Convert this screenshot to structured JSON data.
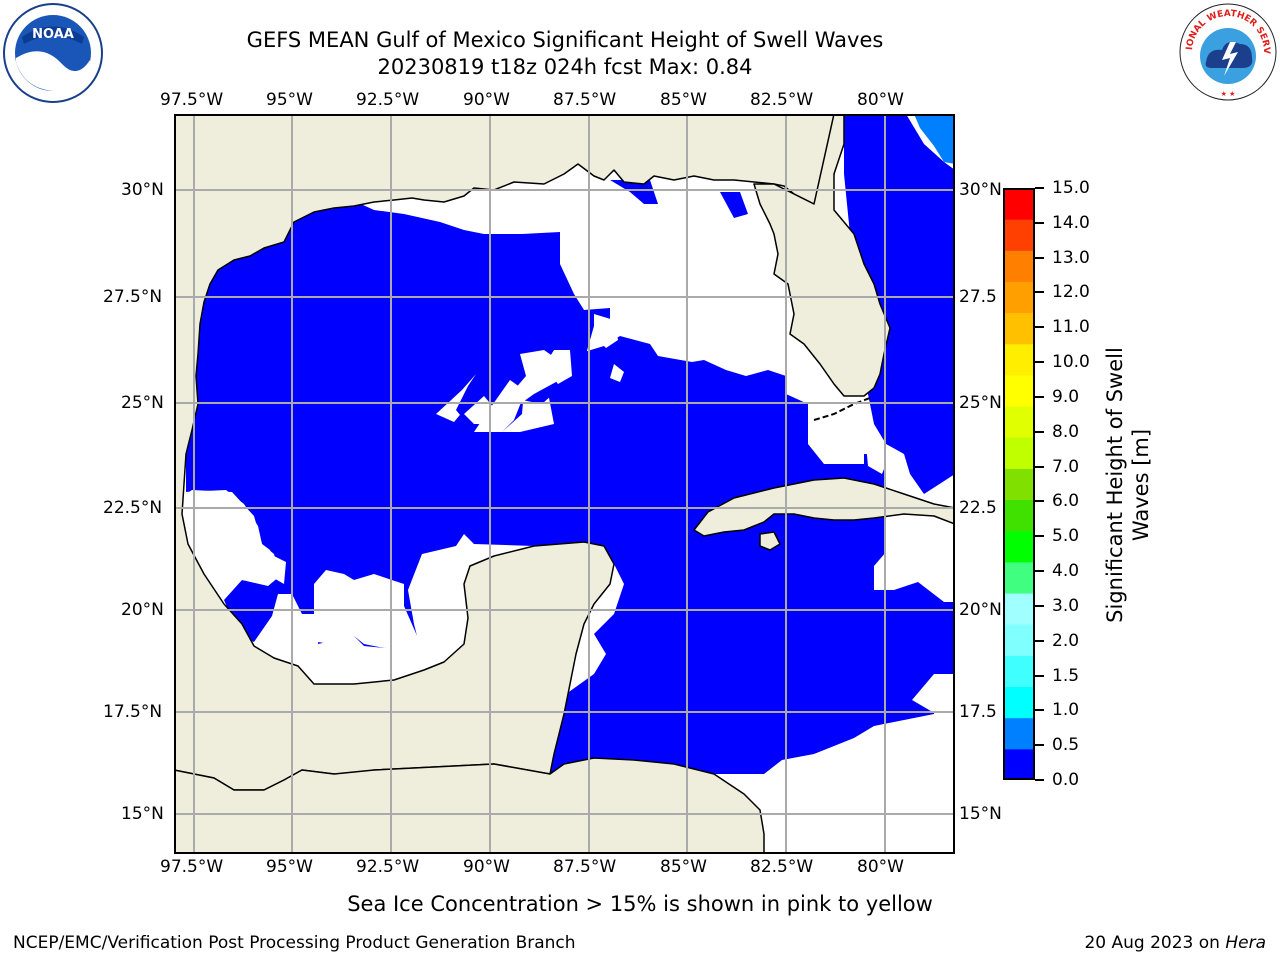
{
  "title_line1": "GEFS MEAN Gulf of Mexico Significant Height of Swell Waves",
  "title_line2": "20230819 t18z 024h fcst   Max: 0.84",
  "note": "Sea Ice Concentration > 15% is shown in pink to yellow",
  "footer_left": "NCEP/EMC/Verification Post Processing Product Generation Branch",
  "footer_right_date": "20 Aug 2023 on ",
  "footer_right_host": "Hera",
  "logos": {
    "left": "NOAA",
    "right": "NATIONAL WEATHER SERVICE"
  },
  "map": {
    "lon_labels": [
      "97.5°W",
      "95°W",
      "92.5°W",
      "90°W",
      "87.5°W",
      "85°W",
      "82.5°W",
      "80°W"
    ],
    "lat_labels_left": [
      "30°N",
      "27.5°N",
      "25°N",
      "22.5°N",
      "20°N",
      "17.5°N",
      "15°N"
    ],
    "lat_labels_right": [
      "30°N",
      "27.5",
      "25°N",
      "22.5",
      "20°N",
      "17.5",
      "15°N"
    ],
    "land_color": "#efeedd",
    "low_swell_color": "#0000ff",
    "mid_swell_color": "#0080ff"
  },
  "colorbar": {
    "label": "Significant Height of Swell\nWaves [m]",
    "label_line1": "Significant Height of Swell",
    "label_line2": "Waves [m]",
    "ticks": [
      "15.0",
      "14.0",
      "13.0",
      "12.0",
      "11.0",
      "10.0",
      "9.0",
      "8.0",
      "7.0",
      "6.0",
      "5.0",
      "4.0",
      "3.0",
      "2.0",
      "1.5",
      "1.0",
      "0.5",
      "0.0"
    ],
    "colors": [
      "#0000ff",
      "#0080ff",
      "#00ffff",
      "#40ffff",
      "#80ffff",
      "#a0ffff",
      "#40ff80",
      "#00ff00",
      "#40e000",
      "#80e000",
      "#c0ff00",
      "#e0ff00",
      "#ffff00",
      "#ffee00",
      "#ffc000",
      "#ffa000",
      "#ff8000",
      "#ff4000",
      "#ff0000"
    ]
  }
}
